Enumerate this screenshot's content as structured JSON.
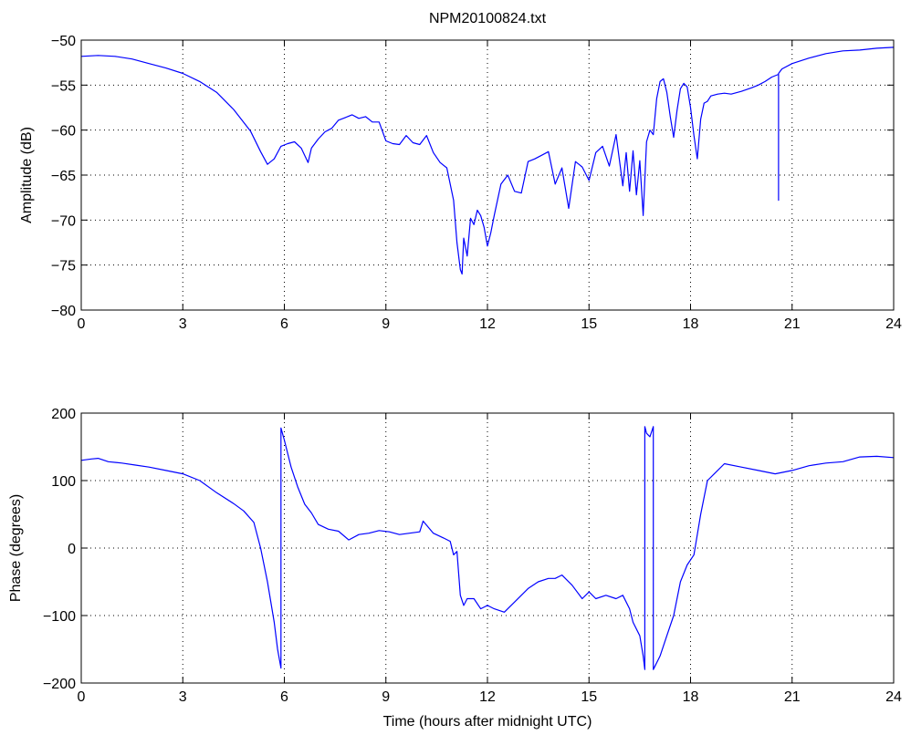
{
  "figure": {
    "title": "NPM20100824.txt",
    "xlabel": "Time (hours after midnight UTC)"
  },
  "chart_data": [
    {
      "type": "line",
      "title": "NPM20100824.txt",
      "xlabel": "",
      "ylabel": "Amplitude (dB)",
      "xlim": [
        0,
        24
      ],
      "ylim": [
        -80,
        -50
      ],
      "xticks": [
        0,
        3,
        6,
        9,
        12,
        15,
        18,
        21,
        24
      ],
      "yticks": [
        -80,
        -75,
        -70,
        -65,
        -60,
        -55,
        -50
      ],
      "grid": true,
      "color": "#0000ff",
      "series": [
        {
          "x": [
            0,
            0.5,
            1,
            1.5,
            2,
            2.5,
            3,
            3.5,
            4,
            4.5,
            5,
            5.3,
            5.5,
            5.7,
            5.9,
            6.1,
            6.3,
            6.5,
            6.7,
            6.8,
            7,
            7.2,
            7.4,
            7.6,
            7.8,
            8,
            8.2,
            8.4,
            8.6,
            8.8,
            9,
            9.2,
            9.4,
            9.6,
            9.8,
            10,
            10.2,
            10.4,
            10.6,
            10.8,
            11,
            11.1,
            11.2,
            11.25,
            11.3,
            11.4,
            11.5,
            11.6,
            11.7,
            11.8,
            11.9,
            12,
            12.1,
            12.2,
            12.4,
            12.6,
            12.8,
            13,
            13.2,
            13.4,
            13.6,
            13.8,
            14,
            14.2,
            14.4,
            14.6,
            14.8,
            15,
            15.2,
            15.4,
            15.6,
            15.8,
            16,
            16.1,
            16.2,
            16.3,
            16.4,
            16.5,
            16.6,
            16.7,
            16.8,
            16.9,
            17,
            17.1,
            17.2,
            17.3,
            17.4,
            17.5,
            17.6,
            17.7,
            17.8,
            17.9,
            18,
            18.1,
            18.2,
            18.3,
            18.4,
            18.5,
            18.6,
            18.8,
            19,
            19.2,
            19.5,
            19.8,
            20,
            20.2,
            20.4,
            20.6,
            20.6,
            20.6,
            20.7,
            21,
            21.5,
            22,
            22.5,
            23,
            23.5,
            24
          ],
          "y": [
            -51.8,
            -51.7,
            -51.8,
            -52.1,
            -52.6,
            -53.1,
            -53.7,
            -54.6,
            -55.8,
            -57.7,
            -60.1,
            -62.4,
            -63.8,
            -63.2,
            -61.8,
            -61.5,
            -61.3,
            -62,
            -63.6,
            -62,
            -61,
            -60.2,
            -59.8,
            -58.9,
            -58.6,
            -58.3,
            -58.7,
            -58.5,
            -59.1,
            -59.1,
            -61.2,
            -61.5,
            -61.6,
            -60.6,
            -61.4,
            -61.6,
            -60.6,
            -62.5,
            -63.6,
            -64.2,
            -67.8,
            -72.5,
            -75.5,
            -76,
            -72,
            -74,
            -69.8,
            -70.5,
            -68.9,
            -69.5,
            -70.8,
            -72.9,
            -71.4,
            -69.5,
            -66,
            -65,
            -66.8,
            -67,
            -63.5,
            -63.2,
            -62.8,
            -62.4,
            -66,
            -64.2,
            -68.7,
            -63.5,
            -64.1,
            -65.6,
            -62.5,
            -61.8,
            -64,
            -60.5,
            -66.2,
            -62.5,
            -66.8,
            -62.3,
            -67.2,
            -63.4,
            -69.5,
            -61.3,
            -60,
            -60.5,
            -56.5,
            -54.6,
            -54.3,
            -55.8,
            -58.5,
            -60.8,
            -57.8,
            -55.4,
            -54.8,
            -55.2,
            -57.5,
            -60.6,
            -63.2,
            -58.8,
            -57,
            -56.8,
            -56.2,
            -56,
            -55.9,
            -56,
            -55.7,
            -55.3,
            -55,
            -54.6,
            -54.1,
            -53.8,
            -67.8,
            -53.7,
            -53.2,
            -52.6,
            -52,
            -51.5,
            -51.2,
            -51.1,
            -50.9,
            -50.8
          ]
        }
      ]
    },
    {
      "type": "line",
      "title": "",
      "xlabel": "Time (hours after midnight UTC)",
      "ylabel": "Phase (degrees)",
      "xlim": [
        0,
        24
      ],
      "ylim": [
        -200,
        200
      ],
      "xticks": [
        0,
        3,
        6,
        9,
        12,
        15,
        18,
        21,
        24
      ],
      "yticks": [
        -200,
        -100,
        0,
        100,
        200
      ],
      "grid": true,
      "color": "#0000ff",
      "series": [
        {
          "x": [
            0,
            0.3,
            0.5,
            0.8,
            1.2,
            1.6,
            2,
            2.5,
            3,
            3.5,
            4,
            4.5,
            4.8,
            5.1,
            5.3,
            5.5,
            5.7,
            5.8,
            5.9,
            5.9,
            6,
            6.2,
            6.4,
            6.6,
            6.8,
            7,
            7.3,
            7.6,
            7.9,
            8.2,
            8.5,
            8.8,
            9.1,
            9.4,
            9.7,
            10,
            10.1,
            10.4,
            10.7,
            10.9,
            11,
            11.1,
            11.2,
            11.3,
            11.4,
            11.6,
            11.8,
            12,
            12.2,
            12.5,
            12.8,
            13,
            13.2,
            13.5,
            13.8,
            14,
            14.2,
            14.5,
            14.8,
            15,
            15.2,
            15.5,
            15.8,
            16,
            16.2,
            16.3,
            16.5,
            16.6,
            16.65,
            16.65,
            16.7,
            16.8,
            16.9,
            16.9,
            17.1,
            17.3,
            17.5,
            17.7,
            17.9,
            18.1,
            18.3,
            18.5,
            18.7,
            19,
            19.5,
            20,
            20.5,
            21,
            21.5,
            22,
            22.5,
            23,
            23.5,
            24
          ],
          "y": [
            130,
            132,
            133,
            128,
            126,
            123,
            120,
            115,
            110,
            100,
            82,
            66,
            55,
            38,
            0,
            -50,
            -110,
            -150,
            -178,
            178,
            160,
            120,
            90,
            65,
            52,
            35,
            28,
            25,
            12,
            20,
            22,
            26,
            24,
            20,
            22,
            24,
            40,
            22,
            15,
            10,
            -10,
            -5,
            -70,
            -85,
            -75,
            -75,
            -90,
            -85,
            -90,
            -95,
            -80,
            -70,
            -60,
            -50,
            -45,
            -45,
            -40,
            -55,
            -75,
            -65,
            -75,
            -70,
            -75,
            -70,
            -90,
            -110,
            -130,
            -160,
            -180,
            180,
            170,
            165,
            180,
            -180,
            -160,
            -130,
            -100,
            -50,
            -25,
            -10,
            50,
            100,
            110,
            125,
            120,
            115,
            110,
            115,
            122,
            126,
            128,
            135,
            136,
            134
          ]
        }
      ]
    }
  ]
}
